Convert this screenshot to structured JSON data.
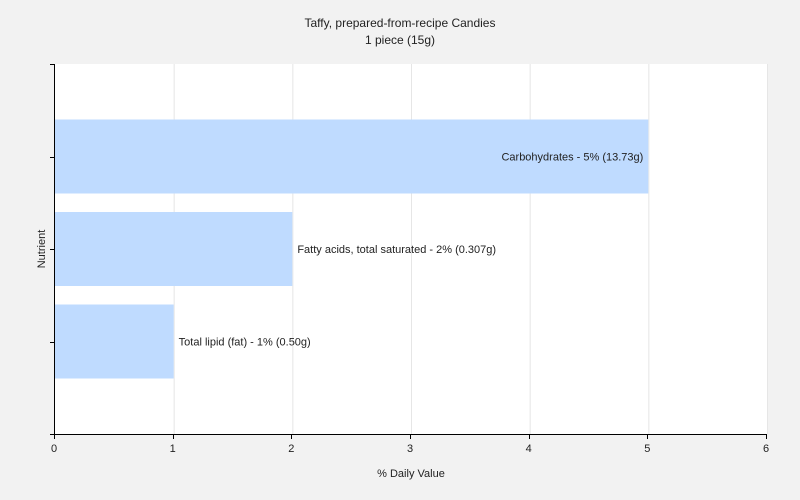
{
  "chart_data": {
    "type": "bar",
    "orientation": "horizontal",
    "title": "Taffy, prepared-from-recipe Candies",
    "subtitle": "1 piece (15g)",
    "xlabel": "% Daily Value",
    "ylabel": "Nutrient",
    "xlim": [
      0,
      6
    ],
    "xticks": [
      "0",
      "1",
      "2",
      "3",
      "4",
      "5",
      "6"
    ],
    "grid": true,
    "colors": {
      "bar": "#bfdbff",
      "plot_bg": "#ffffff",
      "page_bg": "#f2f2f2",
      "grid": "#e6e6e6",
      "axis": "#000000"
    },
    "categories": [
      "Carbohydrates",
      "Fatty acids, total saturated",
      "Total lipid (fat)"
    ],
    "values": [
      5,
      2,
      1
    ],
    "labels": [
      "Carbohydrates - 5% (13.73g)",
      "Fatty acids, total saturated - 2% (0.307g)",
      "Total lipid (fat) - 1% (0.50g)"
    ]
  }
}
